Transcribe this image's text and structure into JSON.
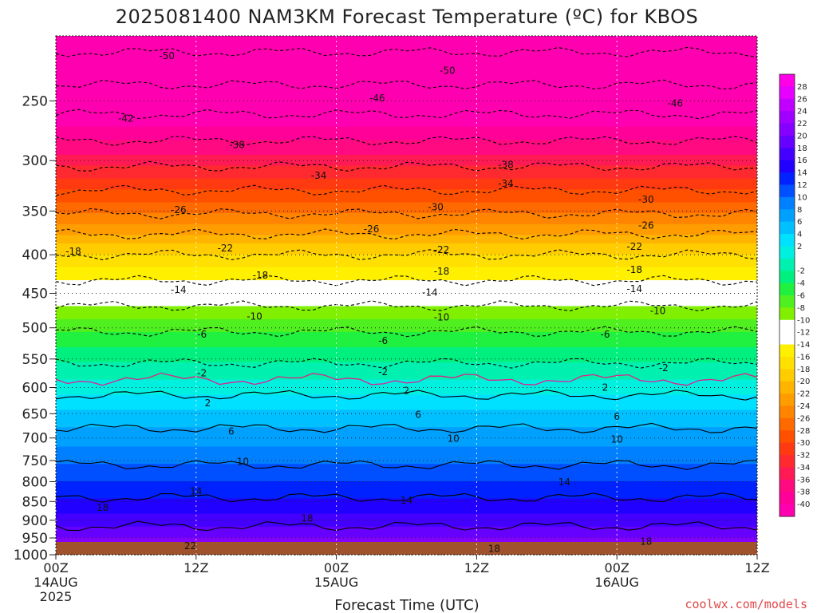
{
  "chart_data": {
    "type": "heatmap",
    "title": "2025081400 NAM3KM Forecast Temperature (ºC) for KBOS",
    "xlabel": "Forecast Time (UTC)",
    "ylabel": "",
    "x_ticks": [
      {
        "hours": 0,
        "lines": [
          "00Z",
          "14AUG",
          "2025"
        ]
      },
      {
        "hours": 12,
        "lines": [
          "12Z"
        ]
      },
      {
        "hours": 24,
        "lines": [
          "00Z",
          "15AUG"
        ]
      },
      {
        "hours": 36,
        "lines": [
          "12Z"
        ]
      },
      {
        "hours": 48,
        "lines": [
          "00Z",
          "16AUG"
        ]
      },
      {
        "hours": 60,
        "lines": [
          "12Z"
        ]
      }
    ],
    "xlim": [
      0,
      60
    ],
    "y_ticks": [
      250,
      300,
      350,
      400,
      450,
      500,
      550,
      600,
      650,
      700,
      750,
      800,
      850,
      900,
      950,
      1000
    ],
    "ylim": [
      1000,
      205
    ],
    "y_scale": "log-pressure",
    "grid": true,
    "colorbar": {
      "ticks": [
        28,
        26,
        24,
        22,
        20,
        18,
        16,
        14,
        12,
        10,
        8,
        6,
        4,
        2,
        -2,
        -4,
        -6,
        -8,
        -10,
        -12,
        -14,
        -16,
        -18,
        -20,
        -22,
        -24,
        -26,
        -28,
        -30,
        -32,
        -34,
        -36,
        -38,
        -40
      ],
      "range": [
        -42,
        30
      ],
      "step": 2,
      "neutral_band": [
        -2,
        2
      ],
      "colors": [
        "#ff00e6",
        "#e600ff",
        "#c000ff",
        "#a000ff",
        "#8600ff",
        "#6600ff",
        "#4400ff",
        "#2200ff",
        "#0022ff",
        "#0050ff",
        "#0080ff",
        "#00a0ff",
        "#00c0ff",
        "#00e0ff",
        "#00f0e0",
        "#00f0b0",
        "#00f080",
        "#20f040",
        "#50f020",
        "#80f000",
        "#ffffff",
        "#ffffff",
        "#fff000",
        "#ffe000",
        "#ffcc00",
        "#ffb400",
        "#ff9c00",
        "#ff8400",
        "#ff6a00",
        "#ff5000",
        "#ff3a10",
        "#ff2a30",
        "#ff1a55",
        "#ff0a80",
        "#ff0099",
        "#ff00b0"
      ]
    },
    "profile": [
      {
        "p": 1000,
        "t": 22.5
      },
      {
        "p": 950,
        "t": 20.0
      },
      {
        "p": 900,
        "t": 17.0
      },
      {
        "p": 850,
        "t": 14.5
      },
      {
        "p": 800,
        "t": 12.0
      },
      {
        "p": 750,
        "t": 9.5
      },
      {
        "p": 700,
        "t": 7.0
      },
      {
        "p": 650,
        "t": 4.5
      },
      {
        "p": 600,
        "t": 1.0
      },
      {
        "p": 550,
        "t": -2.5
      },
      {
        "p": 500,
        "t": -6.5
      },
      {
        "p": 450,
        "t": -12.0
      },
      {
        "p": 400,
        "t": -18.0
      },
      {
        "p": 350,
        "t": -26.5
      },
      {
        "p": 300,
        "t": -35.0
      },
      {
        "p": 250,
        "t": -44.0
      },
      {
        "p": 205,
        "t": -52.0
      }
    ],
    "contour_labels": [
      {
        "text": "-50",
        "hours": 9.5,
        "p": 218
      },
      {
        "text": "-50",
        "hours": 33.5,
        "p": 228
      },
      {
        "text": "-46",
        "hours": 27.5,
        "p": 248
      },
      {
        "text": "-46",
        "hours": 53.0,
        "p": 252
      },
      {
        "text": "-42",
        "hours": 6.0,
        "p": 264
      },
      {
        "text": "-38",
        "hours": 15.5,
        "p": 286
      },
      {
        "text": "-38",
        "hours": 38.5,
        "p": 304
      },
      {
        "text": "-34",
        "hours": 22.5,
        "p": 314
      },
      {
        "text": "-34",
        "hours": 38.5,
        "p": 322
      },
      {
        "text": "-30",
        "hours": 32.5,
        "p": 346
      },
      {
        "text": "-30",
        "hours": 50.5,
        "p": 338
      },
      {
        "text": "-26",
        "hours": 10.5,
        "p": 349
      },
      {
        "text": "-26",
        "hours": 27.0,
        "p": 370
      },
      {
        "text": "-26",
        "hours": 50.5,
        "p": 366
      },
      {
        "text": "-22",
        "hours": 14.5,
        "p": 392
      },
      {
        "text": "-22",
        "hours": 33.0,
        "p": 394
      },
      {
        "text": "-22",
        "hours": 49.5,
        "p": 390
      },
      {
        "text": "-18",
        "hours": 1.5,
        "p": 396
      },
      {
        "text": "-18",
        "hours": 17.5,
        "p": 426
      },
      {
        "text": "-18",
        "hours": 33.0,
        "p": 421
      },
      {
        "text": "-18",
        "hours": 49.5,
        "p": 419
      },
      {
        "text": "-14",
        "hours": 10.5,
        "p": 445
      },
      {
        "text": "-14",
        "hours": 32.0,
        "p": 449
      },
      {
        "text": "-14",
        "hours": 49.5,
        "p": 444
      },
      {
        "text": "-10",
        "hours": 17.0,
        "p": 483
      },
      {
        "text": "-10",
        "hours": 33.0,
        "p": 484
      },
      {
        "text": "-10",
        "hours": 51.5,
        "p": 475
      },
      {
        "text": "-6",
        "hours": 12.5,
        "p": 510
      },
      {
        "text": "-6",
        "hours": 28.0,
        "p": 520
      },
      {
        "text": "-6",
        "hours": 47.0,
        "p": 510
      },
      {
        "text": "-2",
        "hours": 12.5,
        "p": 574
      },
      {
        "text": "-2",
        "hours": 28.0,
        "p": 572
      },
      {
        "text": "-2",
        "hours": 52.0,
        "p": 565
      },
      {
        "text": "2",
        "hours": 13.0,
        "p": 629
      },
      {
        "text": "2",
        "hours": 30.0,
        "p": 606
      },
      {
        "text": "2",
        "hours": 47.0,
        "p": 600
      },
      {
        "text": "6",
        "hours": 15.0,
        "p": 686
      },
      {
        "text": "6",
        "hours": 31.0,
        "p": 652
      },
      {
        "text": "6",
        "hours": 48.0,
        "p": 656
      },
      {
        "text": "10",
        "hours": 16.0,
        "p": 753
      },
      {
        "text": "10",
        "hours": 34.0,
        "p": 701
      },
      {
        "text": "10",
        "hours": 48.0,
        "p": 703
      },
      {
        "text": "14",
        "hours": 12.0,
        "p": 824
      },
      {
        "text": "14",
        "hours": 30.0,
        "p": 847
      },
      {
        "text": "14",
        "hours": 43.5,
        "p": 801
      },
      {
        "text": "18",
        "hours": 4.0,
        "p": 866
      },
      {
        "text": "18",
        "hours": 21.5,
        "p": 895
      },
      {
        "text": "18",
        "hours": 37.5,
        "p": 982
      },
      {
        "text": "18",
        "hours": 50.5,
        "p": 961
      },
      {
        "text": "22",
        "hours": 11.5,
        "p": 974
      }
    ],
    "freezing_line_label": {
      "text": "2",
      "hours": 13.0,
      "p": 629
    }
  },
  "credit": "coolwx.com/models"
}
